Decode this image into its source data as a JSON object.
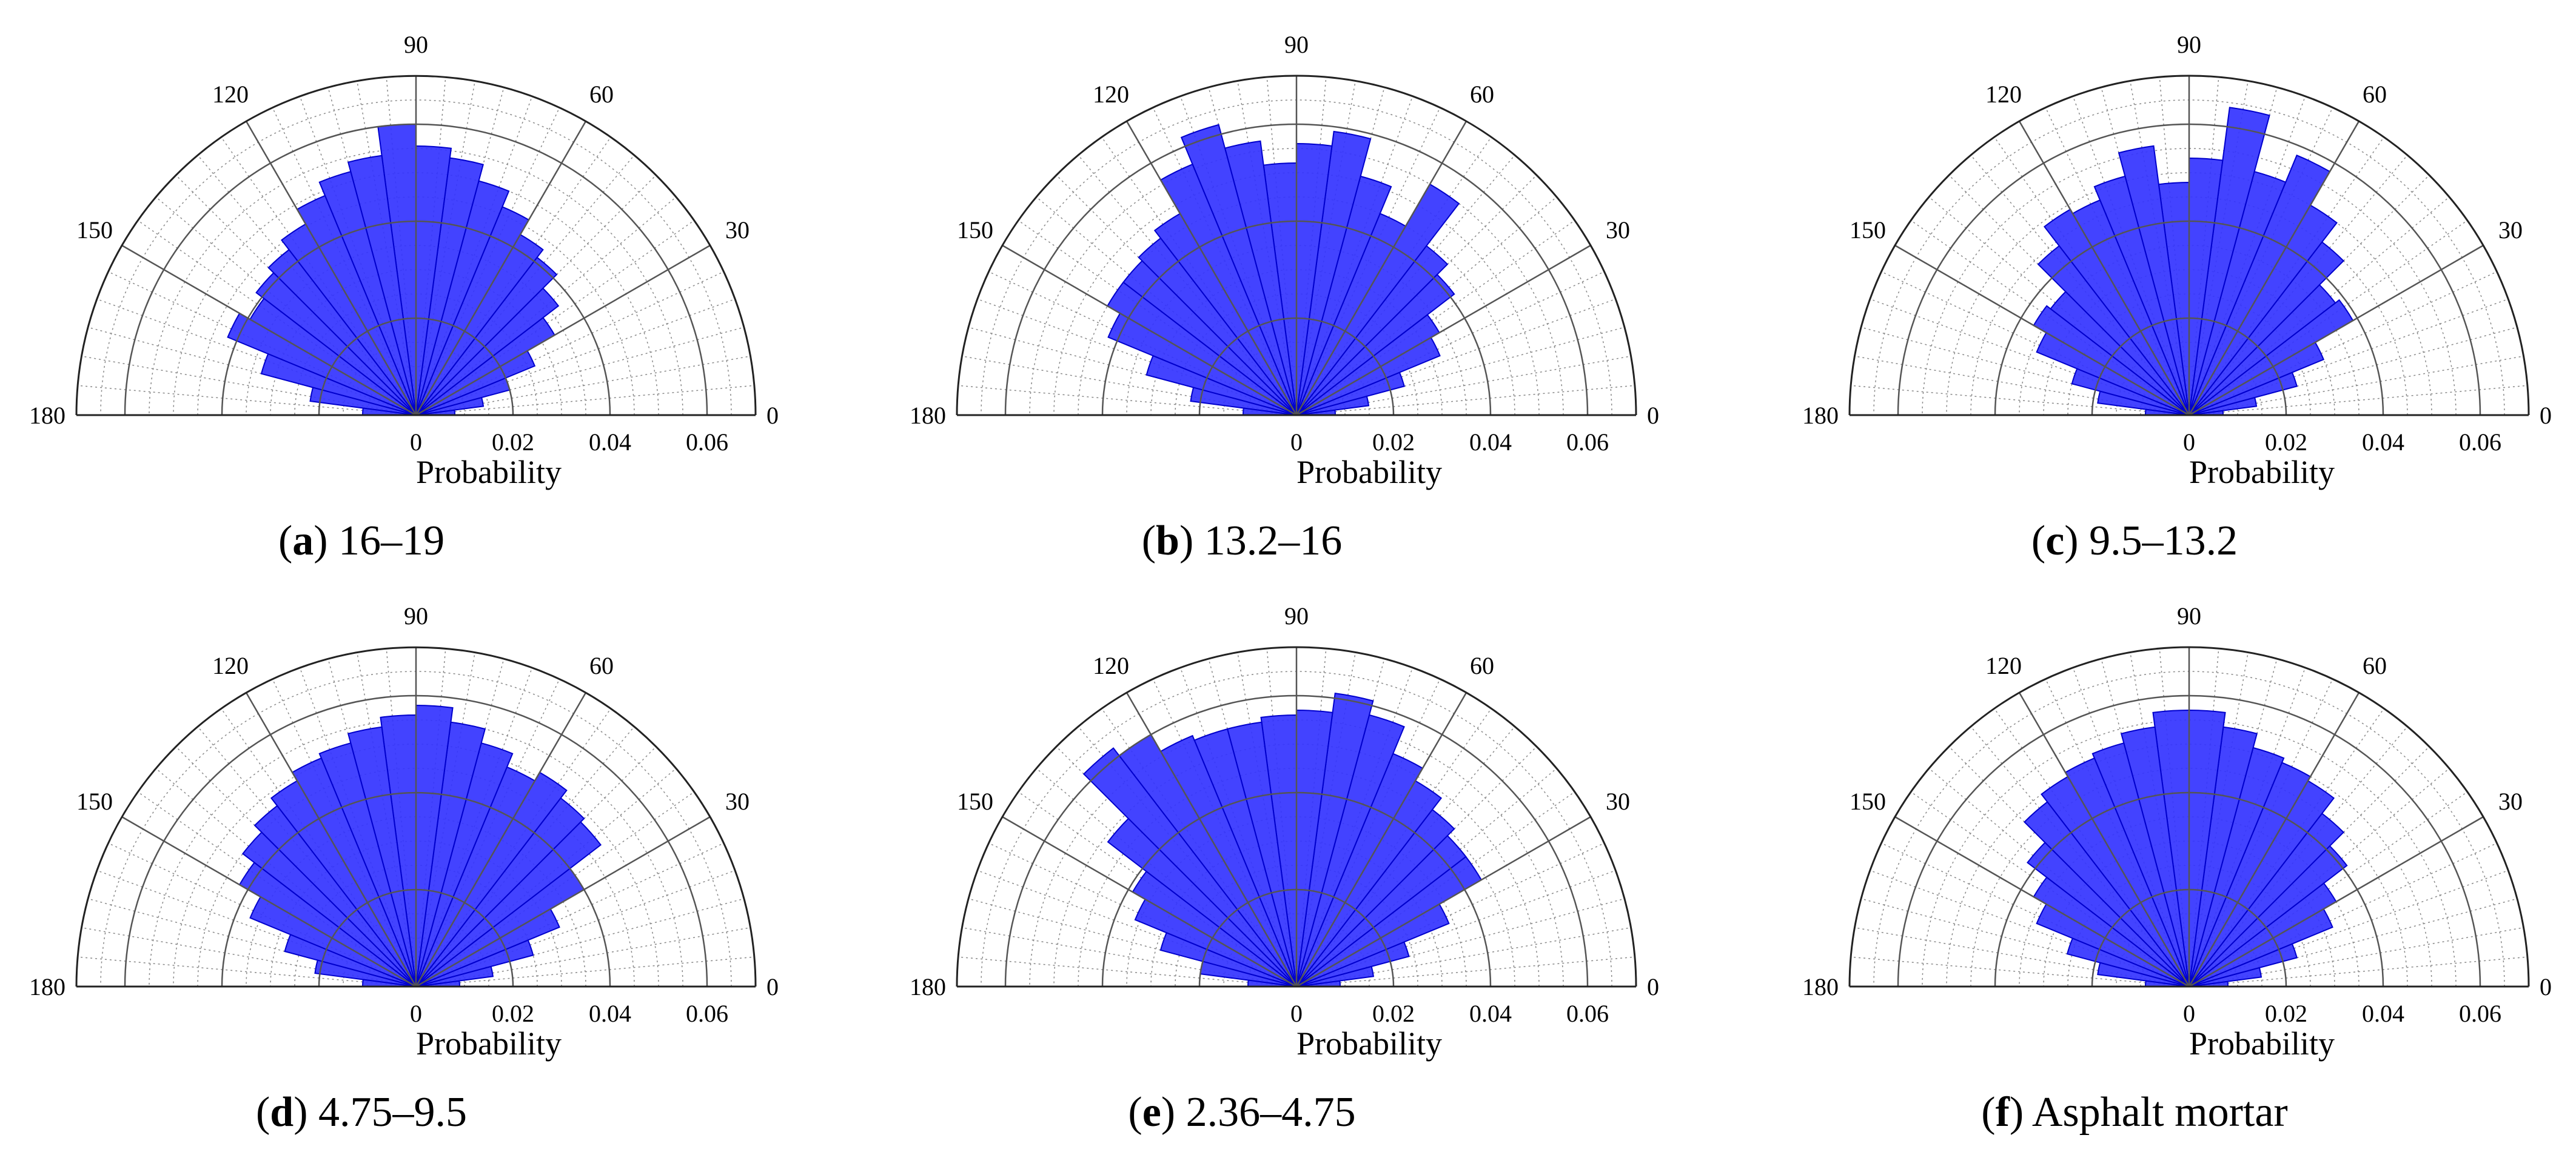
{
  "figure": {
    "accent_fill": "#3333ff",
    "accent_stroke": "#0000cc",
    "grid_color": "#555555"
  },
  "chart_data": [
    {
      "type": "polar-histogram",
      "panel": "a",
      "caption_text": "16–19",
      "xlabel": "Probability",
      "angle_ticks": [
        "0",
        "30",
        "60",
        "90",
        "120",
        "150",
        "180"
      ],
      "radial_ticks": [
        "0",
        "0.02",
        "0.04",
        "0.06"
      ],
      "rlim": [
        0,
        0.07
      ],
      "bin_width_deg": 7.5,
      "bin_centers_deg": [
        3.75,
        11.25,
        18.75,
        26.25,
        33.75,
        41.25,
        48.75,
        56.25,
        63.75,
        71.25,
        78.75,
        86.25,
        93.75,
        101.25,
        108.75,
        116.25,
        123.75,
        131.25,
        138.75,
        146.25,
        153.75,
        161.25,
        168.75,
        176.25
      ],
      "values": [
        0.008,
        0.014,
        0.02,
        0.0265,
        0.033,
        0.037,
        0.041,
        0.043,
        0.0465,
        0.05,
        0.0535,
        0.0555,
        0.06,
        0.054,
        0.052,
        0.049,
        0.0455,
        0.043,
        0.0415,
        0.0395,
        0.042,
        0.033,
        0.022,
        0.011
      ]
    },
    {
      "type": "polar-histogram",
      "panel": "b",
      "caption_text": "13.2–16",
      "xlabel": "Probability",
      "angle_ticks": [
        "0",
        "30",
        "60",
        "90",
        "120",
        "150",
        "180"
      ],
      "radial_ticks": [
        "0",
        "0.02",
        "0.04",
        "0.06"
      ],
      "rlim": [
        0,
        0.07
      ],
      "bin_width_deg": 7.5,
      "bin_centers_deg": [
        3.75,
        11.25,
        18.75,
        26.25,
        33.75,
        41.25,
        48.75,
        56.25,
        63.75,
        71.25,
        78.75,
        86.25,
        93.75,
        101.25,
        108.75,
        116.25,
        123.75,
        131.25,
        138.75,
        146.25,
        153.75,
        161.25,
        168.75,
        176.25
      ],
      "values": [
        0.008,
        0.015,
        0.023,
        0.032,
        0.034,
        0.041,
        0.044,
        0.055,
        0.045,
        0.051,
        0.059,
        0.056,
        0.052,
        0.057,
        0.062,
        0.056,
        0.048,
        0.046,
        0.045,
        0.045,
        0.042,
        0.032,
        0.022,
        0.011
      ]
    },
    {
      "type": "polar-histogram",
      "panel": "c",
      "caption_text": "9.5–13.2",
      "xlabel": "Probability",
      "angle_ticks": [
        "0",
        "30",
        "60",
        "90",
        "120",
        "150",
        "180"
      ],
      "radial_ticks": [
        "0",
        "0.02",
        "0.04",
        "0.06"
      ],
      "rlim": [
        0,
        0.07
      ],
      "bin_width_deg": 7.5,
      "bin_centers_deg": [
        3.75,
        11.25,
        18.75,
        26.25,
        33.75,
        41.25,
        48.75,
        56.25,
        63.75,
        71.25,
        78.75,
        86.25,
        93.75,
        101.25,
        108.75,
        116.25,
        123.75,
        131.25,
        138.75,
        146.25,
        153.75,
        161.25,
        168.75,
        176.25
      ],
      "values": [
        0.007,
        0.014,
        0.023,
        0.03,
        0.039,
        0.038,
        0.045,
        0.05,
        0.058,
        0.052,
        0.064,
        0.053,
        0.048,
        0.056,
        0.051,
        0.048,
        0.049,
        0.044,
        0.036,
        0.037,
        0.034,
        0.025,
        0.019,
        0.009
      ]
    },
    {
      "type": "polar-histogram",
      "panel": "d",
      "caption_text": "4.75–9.5",
      "xlabel": "Probability",
      "angle_ticks": [
        "0",
        "30",
        "60",
        "90",
        "120",
        "150",
        "180"
      ],
      "radial_ticks": [
        "0",
        "0.02",
        "0.04",
        "0.06"
      ],
      "rlim": [
        0,
        0.07
      ],
      "bin_width_deg": 7.5,
      "bin_centers_deg": [
        3.75,
        11.25,
        18.75,
        26.25,
        33.75,
        41.25,
        48.75,
        56.25,
        63.75,
        71.25,
        78.75,
        86.25,
        93.75,
        101.25,
        108.75,
        116.25,
        123.75,
        131.25,
        138.75,
        146.25,
        153.75,
        161.25,
        168.75,
        176.25
      ],
      "values": [
        0.009,
        0.016,
        0.025,
        0.032,
        0.04,
        0.048,
        0.049,
        0.051,
        0.049,
        0.052,
        0.055,
        0.058,
        0.056,
        0.054,
        0.052,
        0.051,
        0.049,
        0.047,
        0.045,
        0.042,
        0.037,
        0.028,
        0.021,
        0.011
      ]
    },
    {
      "type": "polar-histogram",
      "panel": "e",
      "caption_text": "2.36–4.75",
      "xlabel": "Probability",
      "angle_ticks": [
        "0",
        "30",
        "60",
        "90",
        "120",
        "150",
        "180"
      ],
      "radial_ticks": [
        "0",
        "0.02",
        "0.04",
        "0.06"
      ],
      "rlim": [
        0,
        0.07
      ],
      "bin_width_deg": 7.5,
      "bin_centers_deg": [
        3.75,
        11.25,
        18.75,
        26.25,
        33.75,
        41.25,
        48.75,
        56.25,
        63.75,
        71.25,
        78.75,
        86.25,
        93.75,
        101.25,
        108.75,
        116.25,
        123.75,
        131.25,
        138.75,
        146.25,
        153.75,
        161.25,
        168.75,
        176.25
      ],
      "values": [
        0.009,
        0.016,
        0.024,
        0.034,
        0.044,
        0.044,
        0.046,
        0.049,
        0.052,
        0.058,
        0.061,
        0.057,
        0.056,
        0.055,
        0.055,
        0.056,
        0.06,
        0.062,
        0.049,
        0.039,
        0.036,
        0.029,
        0.02,
        0.01
      ]
    },
    {
      "type": "polar-histogram",
      "panel": "f",
      "caption_text": "Asphalt mortar",
      "xlabel": "Probability",
      "angle_ticks": [
        "0",
        "30",
        "60",
        "90",
        "120",
        "150",
        "180"
      ],
      "radial_ticks": [
        "0",
        "0.02",
        "0.04",
        "0.06"
      ],
      "rlim": [
        0,
        0.07
      ],
      "bin_width_deg": 7.5,
      "bin_centers_deg": [
        3.75,
        11.25,
        18.75,
        26.25,
        33.75,
        41.25,
        48.75,
        56.25,
        63.75,
        71.25,
        78.75,
        86.25,
        93.75,
        101.25,
        108.75,
        116.25,
        123.75,
        131.25,
        138.75,
        146.25,
        153.75,
        161.25,
        168.75,
        176.25
      ],
      "values": [
        0.008,
        0.015,
        0.023,
        0.032,
        0.035,
        0.041,
        0.045,
        0.049,
        0.05,
        0.051,
        0.054,
        0.057,
        0.057,
        0.054,
        0.052,
        0.051,
        0.05,
        0.048,
        0.042,
        0.037,
        0.034,
        0.026,
        0.019,
        0.009
      ]
    }
  ]
}
